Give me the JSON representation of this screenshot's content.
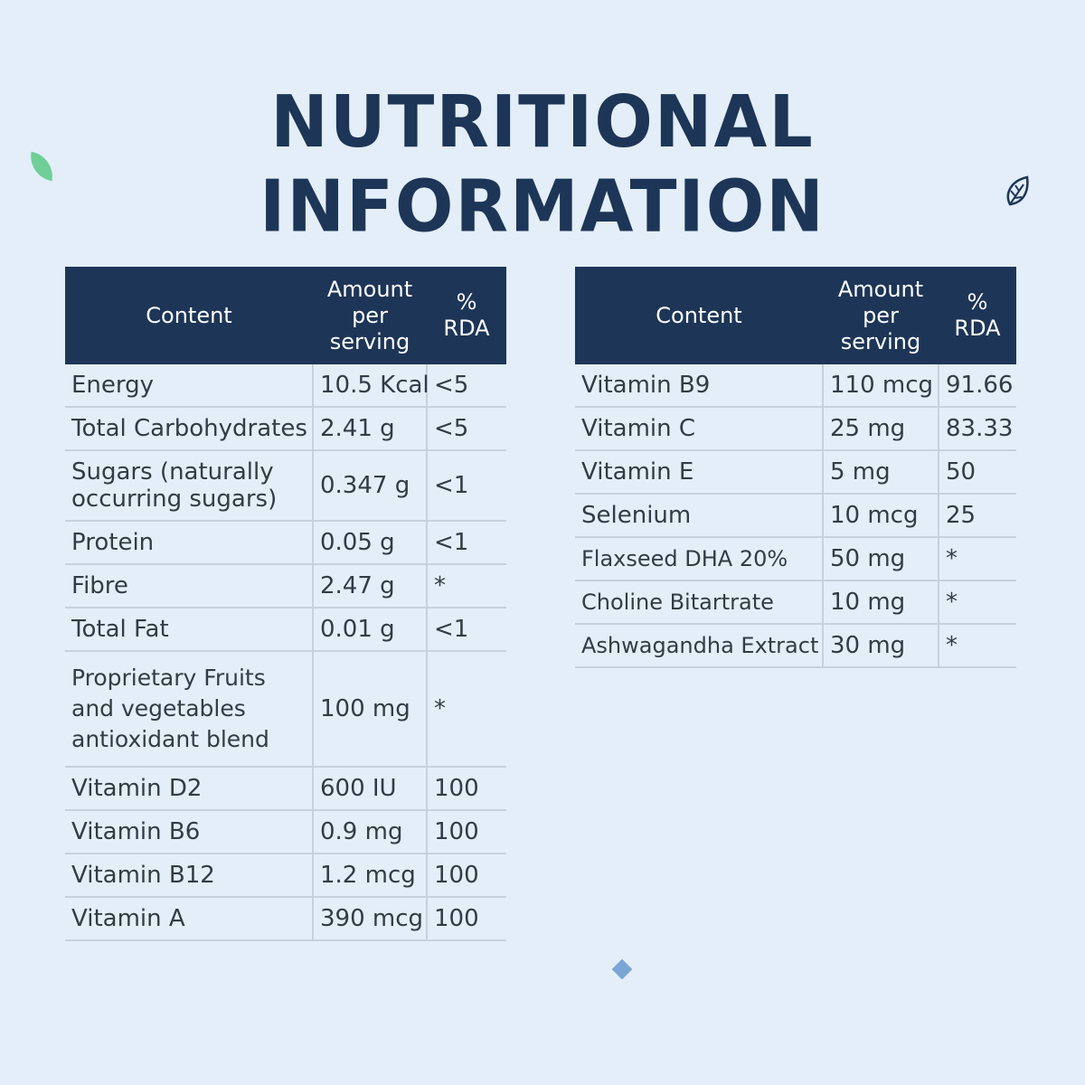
{
  "title": "NUTRITIONAL INFORMATION",
  "colors": {
    "header_bg": "#1d3557",
    "page_bg": "#e3eef8",
    "accent_green": "#6fcf97",
    "accent_blue": "#7ba5d6"
  },
  "headers": {
    "content": "Content",
    "amount": "Amount per serving",
    "rda": "% RDA"
  },
  "left_table": [
    {
      "content": "Energy",
      "amount": "10.5 Kcal",
      "rda": "<5"
    },
    {
      "content": "Total Carbohydrates",
      "amount": "2.41 g",
      "rda": "<5"
    },
    {
      "content": "Sugars (naturally occurring sugars)",
      "amount": "0.347 g",
      "rda": "<1"
    },
    {
      "content": "Protein",
      "amount": "0.05 g",
      "rda": "<1"
    },
    {
      "content": "Fibre",
      "amount": "2.47 g",
      "rda": "*"
    },
    {
      "content": "Total Fat",
      "amount": "0.01 g",
      "rda": "<1"
    },
    {
      "content": "Proprietary Fruits and vegetables antioxidant blend",
      "amount": "100 mg",
      "rda": "*"
    },
    {
      "content": "Vitamin D2",
      "amount": "600 IU",
      "rda": "100"
    },
    {
      "content": "Vitamin B6",
      "amount": "0.9 mg",
      "rda": "100"
    },
    {
      "content": "Vitamin B12",
      "amount": "1.2 mcg",
      "rda": "100"
    },
    {
      "content": "Vitamin A",
      "amount": "390 mcg",
      "rda": "100"
    }
  ],
  "right_table": [
    {
      "content": "Vitamin B9",
      "amount": "110 mcg",
      "rda": "91.66"
    },
    {
      "content": "Vitamin C",
      "amount": "25 mg",
      "rda": "83.33"
    },
    {
      "content": "Vitamin E",
      "amount": "5 mg",
      "rda": "50"
    },
    {
      "content": "Selenium",
      "amount": "10 mcg",
      "rda": "25"
    },
    {
      "content": "Flaxseed DHA 20%",
      "amount": "50 mg",
      "rda": "*"
    },
    {
      "content": "Choline Bitartrate",
      "amount": "10 mg",
      "rda": "*"
    },
    {
      "content": "Ashwagandha Extract",
      "amount": "30 mg",
      "rda": "*"
    }
  ],
  "decorations": [
    "leaf-icon",
    "leaf-outline-icon",
    "diamond-icon"
  ]
}
